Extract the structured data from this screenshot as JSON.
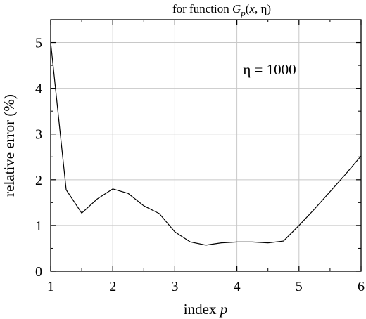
{
  "chart_data": {
    "type": "line",
    "title": {
      "prefix": "for function ",
      "func": "G",
      "sub": "p",
      "args_open": "(",
      "arg1": "x",
      "sep": ", ",
      "arg2": "η",
      "args_close": ")"
    },
    "xlabel": {
      "text": "index ",
      "var": "p"
    },
    "ylabel": "relative error (%)",
    "xlim": [
      1,
      6
    ],
    "ylim": [
      0,
      5.5
    ],
    "xticks": [
      1,
      2,
      3,
      4,
      5,
      6
    ],
    "yticks": [
      0,
      1,
      2,
      3,
      4,
      5
    ],
    "grid": true,
    "annotation": "η = 1000",
    "series": [
      {
        "x": [
          1.0,
          1.25,
          1.5,
          1.75,
          2.0,
          2.25,
          2.5,
          2.75,
          3.0,
          3.25,
          3.5,
          3.75,
          4.0,
          4.25,
          4.5,
          4.75,
          5.0,
          5.25,
          5.5,
          5.75,
          6.0
        ],
        "y": [
          5.0,
          1.78,
          1.27,
          1.58,
          1.8,
          1.7,
          1.43,
          1.26,
          0.86,
          0.64,
          0.57,
          0.62,
          0.64,
          0.64,
          0.62,
          0.66,
          1.0,
          1.36,
          1.74,
          2.12,
          2.52
        ]
      }
    ],
    "line_color": "#000000",
    "grid_color": "#c8c8c8"
  }
}
